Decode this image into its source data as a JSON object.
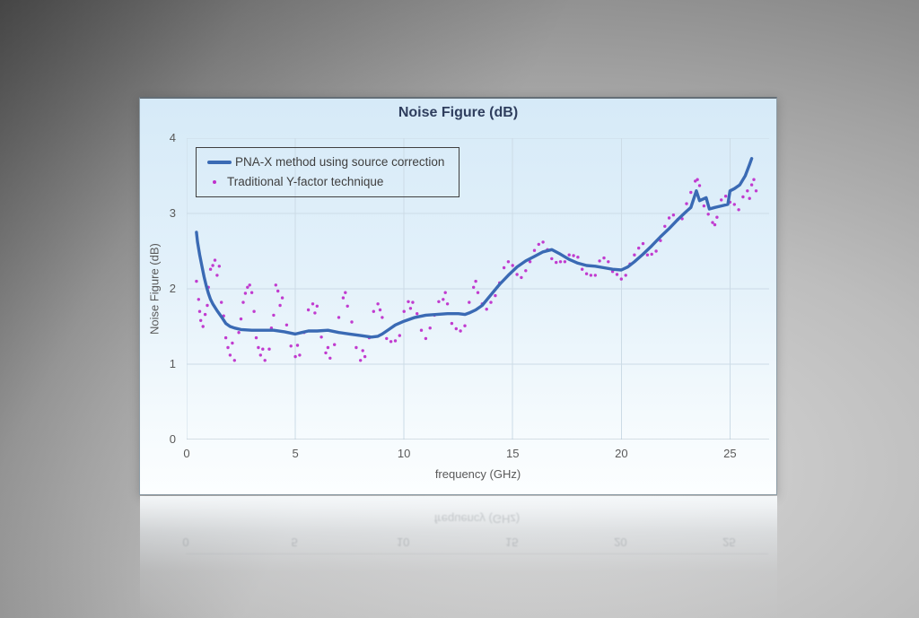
{
  "chart": {
    "title": "Noise Figure (dB)",
    "x_axis": {
      "label": "frequency (GHz)",
      "ticks": [
        0,
        5,
        10,
        15,
        20,
        25
      ],
      "min": 0,
      "max": 26.8
    },
    "y_axis": {
      "label": "Noise Figure (dB)",
      "ticks": [
        0,
        1,
        2,
        3,
        4
      ],
      "min": 0,
      "max": 4
    },
    "legend": [
      {
        "label": "PNA-X method using source correction",
        "swatch": "line",
        "color": "#3a6ab4"
      },
      {
        "label": "Traditional Y-factor technique",
        "swatch": "dot",
        "color": "#bf30cc"
      }
    ],
    "colors": {
      "grid": "#ccdbe6",
      "axis": "#b3c2cc",
      "tick_text": "#595959",
      "title_text": "#2f3e5e",
      "panel_top": "#d6eaf8",
      "panel_bottom": "#fcfeff",
      "legend_border": "#3f3f3f"
    }
  },
  "chart_data": {
    "type": "line",
    "title": "Noise Figure (dB)",
    "xlabel": "frequency (GHz)",
    "ylabel": "Noise Figure (dB)",
    "xlim": [
      0,
      26.8
    ],
    "ylim": [
      0,
      4
    ],
    "grid": true,
    "legend_position": "top-left",
    "series": [
      {
        "name": "PNA-X method using source correction",
        "kind": "line",
        "color": "#3a6ab4",
        "points": [
          [
            0.45,
            2.75
          ],
          [
            0.5,
            2.62
          ],
          [
            0.6,
            2.45
          ],
          [
            0.7,
            2.3
          ],
          [
            0.8,
            2.16
          ],
          [
            0.9,
            2.04
          ],
          [
            1.0,
            1.94
          ],
          [
            1.1,
            1.86
          ],
          [
            1.2,
            1.8
          ],
          [
            1.4,
            1.71
          ],
          [
            1.6,
            1.63
          ],
          [
            1.8,
            1.54
          ],
          [
            2.0,
            1.5
          ],
          [
            2.2,
            1.48
          ],
          [
            2.5,
            1.46
          ],
          [
            3.0,
            1.45
          ],
          [
            3.5,
            1.45
          ],
          [
            4.0,
            1.45
          ],
          [
            4.5,
            1.43
          ],
          [
            5.0,
            1.4
          ],
          [
            5.3,
            1.42
          ],
          [
            5.6,
            1.44
          ],
          [
            6.0,
            1.44
          ],
          [
            6.5,
            1.45
          ],
          [
            7.0,
            1.42
          ],
          [
            7.5,
            1.4
          ],
          [
            8.0,
            1.38
          ],
          [
            8.5,
            1.36
          ],
          [
            8.8,
            1.37
          ],
          [
            9.0,
            1.4
          ],
          [
            9.3,
            1.46
          ],
          [
            9.6,
            1.52
          ],
          [
            10.0,
            1.57
          ],
          [
            10.5,
            1.62
          ],
          [
            11.0,
            1.65
          ],
          [
            11.5,
            1.66
          ],
          [
            12.0,
            1.67
          ],
          [
            12.5,
            1.67
          ],
          [
            12.8,
            1.66
          ],
          [
            13.0,
            1.68
          ],
          [
            13.3,
            1.72
          ],
          [
            13.6,
            1.78
          ],
          [
            14.0,
            1.92
          ],
          [
            14.4,
            2.06
          ],
          [
            14.8,
            2.18
          ],
          [
            15.2,
            2.29
          ],
          [
            15.6,
            2.37
          ],
          [
            16.0,
            2.43
          ],
          [
            16.4,
            2.49
          ],
          [
            16.8,
            2.52
          ],
          [
            17.2,
            2.46
          ],
          [
            17.6,
            2.39
          ],
          [
            18.0,
            2.34
          ],
          [
            18.4,
            2.31
          ],
          [
            18.8,
            2.3
          ],
          [
            19.2,
            2.28
          ],
          [
            19.6,
            2.26
          ],
          [
            20.0,
            2.25
          ],
          [
            20.3,
            2.29
          ],
          [
            20.6,
            2.36
          ],
          [
            21.0,
            2.46
          ],
          [
            21.4,
            2.57
          ],
          [
            21.8,
            2.69
          ],
          [
            22.2,
            2.8
          ],
          [
            22.6,
            2.92
          ],
          [
            23.0,
            3.03
          ],
          [
            23.2,
            3.08
          ],
          [
            23.45,
            3.3
          ],
          [
            23.6,
            3.17
          ],
          [
            23.9,
            3.21
          ],
          [
            24.05,
            3.06
          ],
          [
            24.3,
            3.08
          ],
          [
            24.6,
            3.1
          ],
          [
            24.9,
            3.12
          ],
          [
            25.0,
            3.3
          ],
          [
            25.2,
            3.33
          ],
          [
            25.45,
            3.38
          ],
          [
            25.7,
            3.5
          ],
          [
            25.9,
            3.65
          ],
          [
            26.0,
            3.73
          ]
        ]
      },
      {
        "name": "Traditional Y-factor technique",
        "kind": "scatter",
        "color": "#bf30cc",
        "points": [
          [
            0.45,
            2.1
          ],
          [
            0.55,
            1.86
          ],
          [
            0.6,
            1.7
          ],
          [
            0.65,
            1.58
          ],
          [
            0.75,
            1.5
          ],
          [
            0.85,
            1.66
          ],
          [
            0.95,
            1.78
          ],
          [
            1.0,
            2.02
          ],
          [
            1.1,
            2.26
          ],
          [
            1.2,
            2.31
          ],
          [
            1.3,
            2.38
          ],
          [
            1.4,
            2.18
          ],
          [
            1.5,
            2.3
          ],
          [
            1.6,
            1.82
          ],
          [
            1.7,
            1.64
          ],
          [
            1.8,
            1.35
          ],
          [
            1.9,
            1.22
          ],
          [
            2.0,
            1.12
          ],
          [
            2.1,
            1.28
          ],
          [
            2.2,
            1.05
          ],
          [
            2.4,
            1.42
          ],
          [
            2.5,
            1.6
          ],
          [
            2.6,
            1.82
          ],
          [
            2.7,
            1.94
          ],
          [
            2.8,
            2.02
          ],
          [
            2.9,
            2.05
          ],
          [
            3.0,
            1.95
          ],
          [
            3.1,
            1.7
          ],
          [
            3.2,
            1.35
          ],
          [
            3.3,
            1.22
          ],
          [
            3.4,
            1.12
          ],
          [
            3.5,
            1.2
          ],
          [
            3.6,
            1.05
          ],
          [
            3.8,
            1.2
          ],
          [
            3.9,
            1.48
          ],
          [
            4.0,
            1.65
          ],
          [
            4.1,
            2.05
          ],
          [
            4.2,
            1.97
          ],
          [
            4.3,
            1.78
          ],
          [
            4.4,
            1.88
          ],
          [
            4.6,
            1.52
          ],
          [
            4.8,
            1.24
          ],
          [
            5.0,
            1.1
          ],
          [
            5.1,
            1.25
          ],
          [
            5.2,
            1.12
          ],
          [
            5.4,
            1.42
          ],
          [
            5.6,
            1.72
          ],
          [
            5.8,
            1.8
          ],
          [
            5.9,
            1.68
          ],
          [
            6.0,
            1.77
          ],
          [
            6.2,
            1.36
          ],
          [
            6.4,
            1.15
          ],
          [
            6.5,
            1.22
          ],
          [
            6.6,
            1.08
          ],
          [
            6.8,
            1.26
          ],
          [
            7.0,
            1.62
          ],
          [
            7.2,
            1.88
          ],
          [
            7.3,
            1.95
          ],
          [
            7.4,
            1.77
          ],
          [
            7.6,
            1.56
          ],
          [
            7.8,
            1.22
          ],
          [
            8.0,
            1.05
          ],
          [
            8.1,
            1.18
          ],
          [
            8.2,
            1.1
          ],
          [
            8.4,
            1.35
          ],
          [
            8.6,
            1.7
          ],
          [
            8.8,
            1.8
          ],
          [
            8.9,
            1.72
          ],
          [
            9.0,
            1.62
          ],
          [
            9.2,
            1.34
          ],
          [
            9.4,
            1.3
          ],
          [
            9.6,
            1.31
          ],
          [
            9.8,
            1.38
          ],
          [
            10.0,
            1.7
          ],
          [
            10.2,
            1.83
          ],
          [
            10.3,
            1.74
          ],
          [
            10.4,
            1.82
          ],
          [
            10.6,
            1.67
          ],
          [
            10.8,
            1.45
          ],
          [
            11.0,
            1.34
          ],
          [
            11.2,
            1.48
          ],
          [
            11.4,
            1.65
          ],
          [
            11.6,
            1.83
          ],
          [
            11.8,
            1.86
          ],
          [
            11.9,
            1.95
          ],
          [
            12.0,
            1.8
          ],
          [
            12.2,
            1.54
          ],
          [
            12.4,
            1.47
          ],
          [
            12.6,
            1.44
          ],
          [
            12.8,
            1.51
          ],
          [
            13.0,
            1.82
          ],
          [
            13.2,
            2.02
          ],
          [
            13.3,
            2.1
          ],
          [
            13.4,
            1.95
          ],
          [
            13.6,
            1.8
          ],
          [
            13.8,
            1.73
          ],
          [
            14.0,
            1.82
          ],
          [
            14.2,
            1.91
          ],
          [
            14.4,
            2.08
          ],
          [
            14.6,
            2.28
          ],
          [
            14.8,
            2.36
          ],
          [
            15.0,
            2.31
          ],
          [
            15.2,
            2.19
          ],
          [
            15.4,
            2.15
          ],
          [
            15.6,
            2.24
          ],
          [
            15.8,
            2.36
          ],
          [
            16.0,
            2.51
          ],
          [
            16.2,
            2.59
          ],
          [
            16.4,
            2.62
          ],
          [
            16.6,
            2.52
          ],
          [
            16.8,
            2.4
          ],
          [
            17.0,
            2.35
          ],
          [
            17.2,
            2.36
          ],
          [
            17.4,
            2.36
          ],
          [
            17.6,
            2.45
          ],
          [
            17.8,
            2.44
          ],
          [
            18.0,
            2.42
          ],
          [
            18.2,
            2.26
          ],
          [
            18.4,
            2.2
          ],
          [
            18.6,
            2.18
          ],
          [
            18.8,
            2.18
          ],
          [
            19.0,
            2.37
          ],
          [
            19.2,
            2.41
          ],
          [
            19.4,
            2.36
          ],
          [
            19.6,
            2.23
          ],
          [
            19.8,
            2.19
          ],
          [
            20.0,
            2.13
          ],
          [
            20.2,
            2.18
          ],
          [
            20.4,
            2.33
          ],
          [
            20.6,
            2.45
          ],
          [
            20.8,
            2.54
          ],
          [
            21.0,
            2.6
          ],
          [
            21.2,
            2.45
          ],
          [
            21.4,
            2.46
          ],
          [
            21.6,
            2.5
          ],
          [
            21.8,
            2.64
          ],
          [
            22.0,
            2.83
          ],
          [
            22.2,
            2.94
          ],
          [
            22.4,
            2.98
          ],
          [
            22.6,
            2.92
          ],
          [
            22.8,
            2.93
          ],
          [
            23.0,
            3.13
          ],
          [
            23.2,
            3.28
          ],
          [
            23.4,
            3.43
          ],
          [
            23.5,
            3.45
          ],
          [
            23.6,
            3.37
          ],
          [
            23.8,
            3.1
          ],
          [
            24.0,
            2.99
          ],
          [
            24.2,
            2.88
          ],
          [
            24.3,
            2.85
          ],
          [
            24.4,
            2.95
          ],
          [
            24.6,
            3.18
          ],
          [
            24.8,
            3.23
          ],
          [
            25.0,
            3.15
          ],
          [
            25.2,
            3.12
          ],
          [
            25.4,
            3.05
          ],
          [
            25.6,
            3.22
          ],
          [
            25.8,
            3.3
          ],
          [
            25.9,
            3.2
          ],
          [
            26.0,
            3.38
          ],
          [
            26.1,
            3.45
          ],
          [
            26.2,
            3.3
          ]
        ]
      }
    ]
  }
}
